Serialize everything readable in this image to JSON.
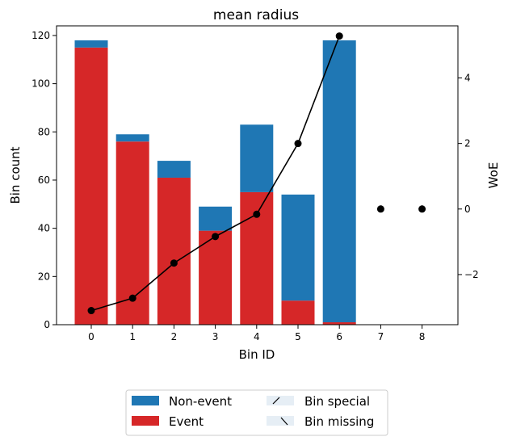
{
  "chart_data": {
    "type": "bar",
    "title": "mean radius",
    "xlabel": "Bin ID",
    "ylabel": "Bin count",
    "y2label": "WoE",
    "categories": [
      "0",
      "1",
      "2",
      "3",
      "4",
      "5",
      "6",
      "7",
      "8"
    ],
    "series": [
      {
        "name": "Event",
        "kind": "stacked-bar",
        "color": "#d62728",
        "values": [
          115,
          76,
          61,
          39,
          55,
          10,
          1,
          0,
          0
        ]
      },
      {
        "name": "Non-event",
        "kind": "stacked-bar",
        "color": "#1f77b4",
        "values": [
          3,
          3,
          7,
          10,
          28,
          44,
          117,
          0,
          0
        ]
      },
      {
        "name": "",
        "kind": "line",
        "axis": "right",
        "color": "#000000",
        "values": [
          -3.1,
          -2.72,
          -1.65,
          -0.84,
          -0.16,
          2.0,
          5.28,
          0.0,
          0.0
        ],
        "connected_points": 7
      }
    ],
    "ylim": [
      0,
      124
    ],
    "yticks": [
      0,
      20,
      40,
      60,
      80,
      100,
      120
    ],
    "y2lim": [
      -3.53,
      5.59
    ],
    "y2ticks": [
      -2,
      0,
      2,
      4
    ],
    "y2ticklabels": [
      "−2",
      "0",
      "2",
      "4"
    ],
    "legend": {
      "placement": "bottom-center, outside",
      "entries": [
        "Non-event",
        "Event",
        "Bin special",
        "Bin missing"
      ]
    }
  }
}
